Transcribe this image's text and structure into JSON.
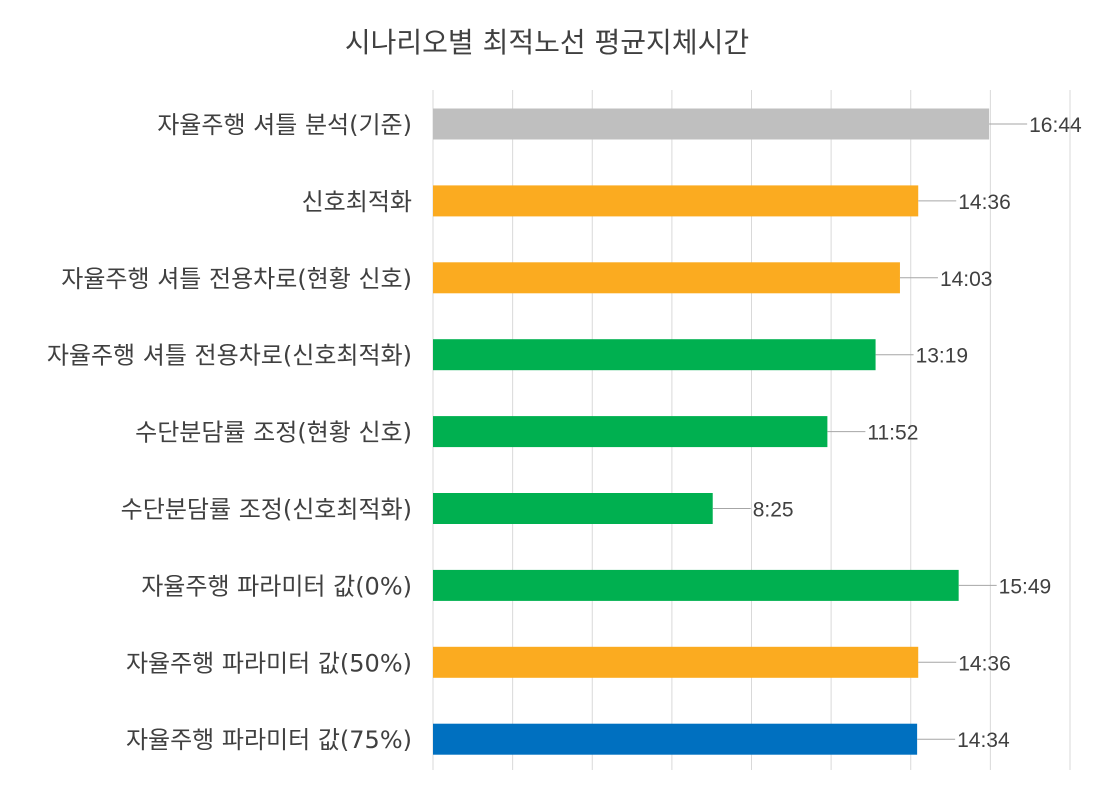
{
  "chart_data": {
    "type": "bar",
    "orientation": "horizontal",
    "title": "시나리오별 최적노선 평균지체시간",
    "categories": [
      "자율주행 셔틀 분석(기준)",
      "신호최적화",
      "자율주행 셔틀 전용차로(현황 신호)",
      "자율주행 셔틀 전용차로(신호최적화)",
      "수단분담률 조정(현황 신호)",
      "수단분담률 조정(신호최적화)",
      "자율주행 파라미터 값(0%)",
      "자율주행 파라미터 값(50%)",
      "자율주행 파라미터 값(75%)"
    ],
    "values_seconds": [
      1004,
      876,
      843,
      799,
      712,
      505,
      949,
      876,
      874
    ],
    "value_labels": [
      "16:44",
      "14:36",
      "14:03",
      "13:19",
      "11:52",
      "8:25",
      "15:49",
      "14:36",
      "14:34"
    ],
    "bar_colors": [
      "#bfbfbf",
      "#fbab20",
      "#fbab20",
      "#00b050",
      "#00b050",
      "#00b050",
      "#00b050",
      "#fbab20",
      "#0070c0"
    ],
    "xlim_seconds": [
      0,
      1150
    ],
    "grid": true,
    "legend": "none"
  }
}
